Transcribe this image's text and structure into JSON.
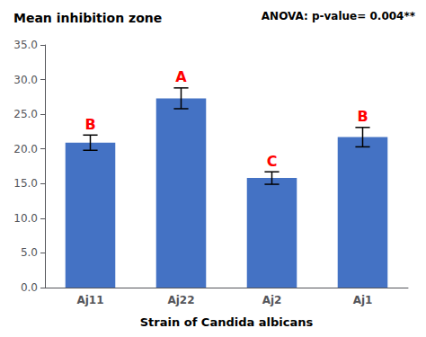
{
  "chart_data": {
    "type": "bar",
    "title": "Mean inhibition zone",
    "categories": [
      "Aj11",
      "Aj22",
      "Aj2",
      "Aj1"
    ],
    "values": [
      20.9,
      27.3,
      15.8,
      21.7
    ],
    "errors": [
      1.1,
      1.5,
      0.9,
      1.4
    ],
    "color": "#4472C4",
    "significance_labels": [
      "B",
      "A",
      "C",
      "B"
    ],
    "significance_color": "#FF0000",
    "annotations": [
      "ANOVA: p-value= 0.004**"
    ],
    "xlabel": "Strain of Candida albicans",
    "ylim": [
      0,
      35
    ],
    "yticks": [
      {
        "value": 0,
        "label": "0.0"
      },
      {
        "value": 5,
        "label": "5.0"
      },
      {
        "value": 10,
        "label": "10.0"
      },
      {
        "value": 15,
        "label": "15.0"
      },
      {
        "value": 20,
        "label": "20.0"
      },
      {
        "value": 25,
        "label": "25.0"
      },
      {
        "value": 30,
        "label": "30.0"
      },
      {
        "value": 35,
        "label": "35.0"
      }
    ],
    "grid": false
  }
}
